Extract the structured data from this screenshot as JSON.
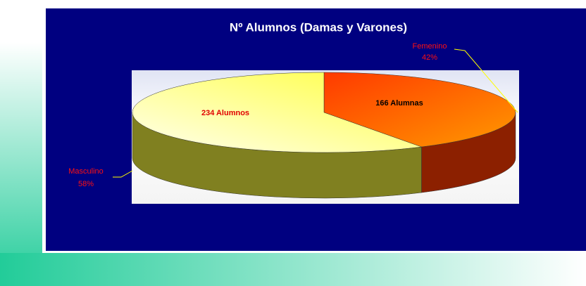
{
  "chart_data": {
    "type": "pie3d",
    "title": "Nº Alumnos (Damas y Varones)",
    "categories": [
      "Femenino",
      "Masculino"
    ],
    "values": [
      166,
      234
    ],
    "value_labels": [
      "166 Alumnas",
      "234 Alumnos"
    ],
    "percents": [
      42,
      58
    ],
    "percent_labels": [
      "42%",
      "58%"
    ],
    "colors": [
      "#ff3a00",
      "#ffff40"
    ]
  }
}
